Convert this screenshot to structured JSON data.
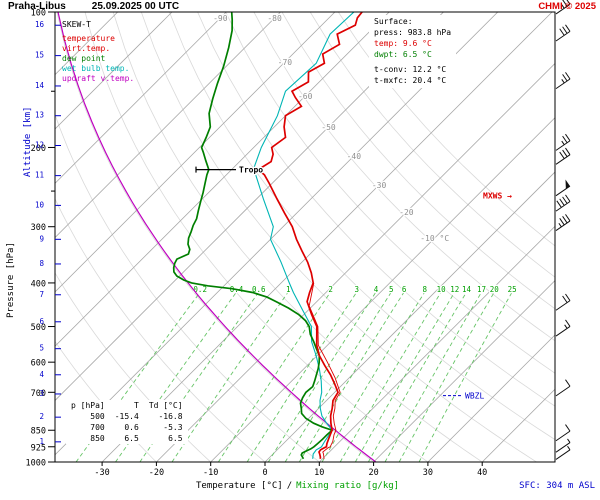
{
  "colors": {
    "red": "#dd0000",
    "blue": "#0000cc",
    "green": "#00a000"
  },
  "header": {
    "station": "Praha-Libus",
    "datetime": "25.09.2025 00 UTC",
    "copyright": "CHMI © 2025"
  },
  "legend": {
    "title": "SKEW-T",
    "items": [
      {
        "label": "temperature",
        "color": "#dd0000"
      },
      {
        "label": "virt.temp.",
        "color": "#dd0000"
      },
      {
        "label": "dew point",
        "color": "#007f00"
      },
      {
        "label": "wet bulb temp.",
        "color": "#00b5b5"
      },
      {
        "label": "updraft v.temp.",
        "color": "#c000c0"
      }
    ]
  },
  "surface_box": {
    "title": "Surface:",
    "lines": [
      {
        "text": "press: 983.8 hPa",
        "color": "#000000"
      },
      {
        "text": "temp: 9.6 °C",
        "color": "#dd0000"
      },
      {
        "text": "dwpt: 6.5 °C",
        "color": "#007f00"
      },
      {
        "text": "t-conv: 12.2 °C",
        "color": "#000000"
      },
      {
        "text": "t-mxfc: 20.4 °C",
        "color": "#000000"
      }
    ]
  },
  "readout_table": {
    "headers": [
      "p [hPa]",
      "T",
      "Td [°C]"
    ],
    "rows": [
      [
        "500",
        "-15.4",
        "-16.8"
      ],
      [
        "700",
        "0.6",
        "-5.3"
      ],
      [
        "850",
        "6.5",
        "6.5"
      ]
    ]
  },
  "axes": {
    "pressure_label": "Pressure [hPa]",
    "altitude_label": "Altitude [km]",
    "pressure_ticks": [
      100,
      200,
      300,
      400,
      500,
      600,
      700,
      850,
      925,
      1000
    ],
    "pressure_minor_ticks": [
      150,
      250
    ],
    "altitude_ticks": [
      {
        "km": 16,
        "p": 107
      },
      {
        "km": 15,
        "p": 125
      },
      {
        "km": 14,
        "p": 146
      },
      {
        "km": 13,
        "p": 170
      },
      {
        "km": 12,
        "p": 198
      },
      {
        "km": 11,
        "p": 231
      },
      {
        "km": 10,
        "p": 269
      },
      {
        "km": 9,
        "p": 320
      },
      {
        "km": 8,
        "p": 363
      },
      {
        "km": 7,
        "p": 425
      },
      {
        "km": 6,
        "p": 488
      },
      {
        "km": 5,
        "p": 560
      },
      {
        "km": 4,
        "p": 640
      },
      {
        "km": 3,
        "p": 706
      },
      {
        "km": 2,
        "p": 795
      },
      {
        "km": 1,
        "p": 902
      }
    ],
    "temp_ticks": [
      -30,
      -20,
      -10,
      0,
      10,
      20,
      30,
      40
    ]
  },
  "footer": {
    "temp_label": "Temperature [°C]",
    "separator": "/",
    "mixing_label": "Mixing ratio [g/kg]",
    "sfc": "SFC: 304 m ASL"
  },
  "chart_data": {
    "type": "line",
    "diagram": "skew-t-log-p sounding",
    "pressure_axis": {
      "unit": "hPa",
      "range": [
        100,
        1000
      ],
      "scale": "log"
    },
    "temperature_axis": {
      "unit": "°C",
      "ticks": [
        -30,
        -20,
        -10,
        0,
        10,
        20,
        30,
        40
      ],
      "skew": "45deg"
    },
    "isotherms": {
      "start": -110,
      "end": 40,
      "step": 10
    },
    "dry_adiabats_theta_c": [
      -20,
      -10,
      0,
      10,
      20,
      30,
      40,
      50,
      60,
      70,
      80,
      90,
      100,
      110,
      120
    ],
    "mixing_ratio_g_kg": [
      0.2,
      0.4,
      0.6,
      1,
      2,
      3,
      4,
      5,
      6,
      8,
      10,
      12,
      14,
      17,
      20,
      25
    ],
    "isotherm_labels": [
      {
        "label": "-90",
        "t": -90,
        "y": 18
      },
      {
        "label": "-80",
        "t": -80,
        "y": 18
      },
      {
        "label": "-70",
        "t": -70,
        "y": 62
      },
      {
        "label": "-60",
        "t": -60,
        "y": 96
      },
      {
        "label": "-50",
        "t": -50,
        "y": 127
      },
      {
        "label": "-40",
        "t": -40,
        "y": 156
      },
      {
        "label": "-30",
        "t": -30,
        "y": 185
      },
      {
        "label": "-20",
        "t": -20,
        "y": 212
      },
      {
        "label": "-10 °C",
        "t": -10,
        "y": 238
      }
    ],
    "tropopause": {
      "label": "Tropo",
      "p": 224
    },
    "markers": {
      "mxws": {
        "label": "MXWS →",
        "p": 256,
        "color": "#dd0000"
      },
      "wbzl": {
        "label": "WBZL",
        "p": 712,
        "color": "#0000cc"
      }
    },
    "series": [
      {
        "name": "temperature",
        "color": "#dd0000",
        "points": [
          [
            984,
            9.6
          ],
          [
            975,
            9.3
          ],
          [
            960,
            8.6
          ],
          [
            950,
            8.1
          ],
          [
            940,
            8.0
          ],
          [
            930,
            8.3
          ],
          [
            925,
            8.5
          ],
          [
            910,
            8.0
          ],
          [
            890,
            7.5
          ],
          [
            870,
            7.0
          ],
          [
            850,
            6.5
          ],
          [
            820,
            5.0
          ],
          [
            790,
            3.6
          ],
          [
            760,
            2.5
          ],
          [
            730,
            1.2
          ],
          [
            700,
            0.6
          ],
          [
            670,
            -1.6
          ],
          [
            640,
            -4.0
          ],
          [
            610,
            -6.8
          ],
          [
            580,
            -9.6
          ],
          [
            550,
            -12.0
          ],
          [
            520,
            -14.0
          ],
          [
            500,
            -15.4
          ],
          [
            470,
            -18.6
          ],
          [
            440,
            -21.8
          ],
          [
            420,
            -23.0
          ],
          [
            400,
            -24.1
          ],
          [
            380,
            -26.3
          ],
          [
            360,
            -28.9
          ],
          [
            340,
            -32.0
          ],
          [
            320,
            -35.2
          ],
          [
            300,
            -38.3
          ],
          [
            280,
            -42.2
          ],
          [
            260,
            -46.3
          ],
          [
            250,
            -48.4
          ],
          [
            240,
            -50.6
          ],
          [
            230,
            -53.0
          ],
          [
            224,
            -55.1
          ],
          [
            215,
            -54.2
          ],
          [
            207,
            -55.2
          ],
          [
            200,
            -56.7
          ],
          [
            190,
            -56.0
          ],
          [
            180,
            -58.2
          ],
          [
            170,
            -60.0
          ],
          [
            162,
            -58.8
          ],
          [
            155,
            -61.5
          ],
          [
            150,
            -63.3
          ],
          [
            143,
            -62.0
          ],
          [
            136,
            -63.8
          ],
          [
            130,
            -62.5
          ],
          [
            124,
            -64.5
          ],
          [
            118,
            -63.2
          ],
          [
            112,
            -65.5
          ],
          [
            107,
            -63.8
          ],
          [
            103,
            -64.8
          ],
          [
            100,
            -65.0
          ]
        ]
      },
      {
        "name": "virt.temp.",
        "color": "#dd0000",
        "points": [
          [
            984,
            10.3
          ],
          [
            960,
            9.3
          ],
          [
            950,
            8.8
          ],
          [
            930,
            9.0
          ],
          [
            925,
            9.2
          ],
          [
            900,
            8.7
          ],
          [
            870,
            7.7
          ],
          [
            850,
            7.2
          ],
          [
            820,
            5.6
          ],
          [
            790,
            4.1
          ],
          [
            760,
            3.0
          ],
          [
            730,
            1.6
          ],
          [
            700,
            1.0
          ],
          [
            650,
            -2.6
          ],
          [
            600,
            -6.9
          ],
          [
            550,
            -11.7
          ],
          [
            500,
            -15.2
          ],
          [
            450,
            -20.6
          ],
          [
            400,
            -24.0
          ]
        ]
      },
      {
        "name": "dew point",
        "color": "#007f00",
        "points": [
          [
            984,
            6.5
          ],
          [
            975,
            6.0
          ],
          [
            965,
            5.4
          ],
          [
            955,
            5.2
          ],
          [
            945,
            5.6
          ],
          [
            935,
            6.0
          ],
          [
            925,
            6.2
          ],
          [
            910,
            6.3
          ],
          [
            890,
            6.4
          ],
          [
            870,
            6.4
          ],
          [
            850,
            6.5
          ],
          [
            835,
            4.0
          ],
          [
            820,
            1.8
          ],
          [
            800,
            -0.5
          ],
          [
            780,
            -2.2
          ],
          [
            760,
            -3.2
          ],
          [
            740,
            -4.3
          ],
          [
            720,
            -4.9
          ],
          [
            700,
            -5.3
          ],
          [
            680,
            -5.1
          ],
          [
            660,
            -5.8
          ],
          [
            640,
            -6.6
          ],
          [
            620,
            -7.4
          ],
          [
            600,
            -8.4
          ],
          [
            580,
            -9.6
          ],
          [
            560,
            -11.4
          ],
          [
            540,
            -13.2
          ],
          [
            520,
            -15.2
          ],
          [
            500,
            -16.8
          ],
          [
            485,
            -18.6
          ],
          [
            470,
            -21.0
          ],
          [
            455,
            -24.0
          ],
          [
            440,
            -27.5
          ],
          [
            430,
            -30.0
          ],
          [
            420,
            -33.5
          ],
          [
            412,
            -38.0
          ],
          [
            406,
            -43.0
          ],
          [
            400,
            -46.5
          ],
          [
            394,
            -48.5
          ],
          [
            386,
            -50.5
          ],
          [
            378,
            -51.8
          ],
          [
            370,
            -52.6
          ],
          [
            362,
            -53.2
          ],
          [
            354,
            -53.6
          ],
          [
            345,
            -52.4
          ],
          [
            337,
            -53.0
          ],
          [
            328,
            -54.3
          ],
          [
            318,
            -55.3
          ],
          [
            308,
            -56.0
          ],
          [
            298,
            -56.8
          ],
          [
            288,
            -57.4
          ],
          [
            276,
            -58.6
          ],
          [
            264,
            -59.8
          ],
          [
            252,
            -61.0
          ],
          [
            240,
            -62.4
          ],
          [
            230,
            -63.6
          ],
          [
            224,
            -64.2
          ],
          [
            214,
            -66.4
          ],
          [
            205,
            -68.4
          ],
          [
            200,
            -69.6
          ],
          [
            190,
            -70.6
          ],
          [
            180,
            -71.8
          ],
          [
            168,
            -74.5
          ],
          [
            156,
            -76.5
          ],
          [
            144,
            -78.5
          ],
          [
            132,
            -80.5
          ],
          [
            120,
            -83.0
          ],
          [
            110,
            -85.5
          ],
          [
            104,
            -87.5
          ],
          [
            100,
            -89.0
          ]
        ]
      },
      {
        "name": "wet bulb temp.",
        "color": "#00b5b5",
        "points": [
          [
            984,
            8.2
          ],
          [
            960,
            7.4
          ],
          [
            940,
            7.2
          ],
          [
            925,
            7.6
          ],
          [
            900,
            7.2
          ],
          [
            870,
            6.8
          ],
          [
            850,
            6.5
          ],
          [
            820,
            4.2
          ],
          [
            790,
            2.0
          ],
          [
            760,
            0.3
          ],
          [
            730,
            -1.2
          ],
          [
            700,
            -2.4
          ],
          [
            660,
            -4.6
          ],
          [
            620,
            -7.2
          ],
          [
            580,
            -10.2
          ],
          [
            540,
            -13.6
          ],
          [
            500,
            -16.4
          ],
          [
            460,
            -21.0
          ],
          [
            420,
            -26.0
          ],
          [
            400,
            -28.5
          ],
          [
            360,
            -33.8
          ],
          [
            320,
            -40.0
          ],
          [
            300,
            -41.8
          ],
          [
            260,
            -48.8
          ],
          [
            230,
            -54.6
          ],
          [
            224,
            -56.0
          ],
          [
            200,
            -58.6
          ],
          [
            170,
            -61.5
          ],
          [
            150,
            -64.5
          ],
          [
            130,
            -64.0
          ],
          [
            112,
            -66.8
          ],
          [
            100,
            -66.5
          ]
        ]
      },
      {
        "name": "updraft v.temp.",
        "color": "#c000c0",
        "theta_c": 20.4,
        "points": []
      }
    ],
    "wind_barbs": [
      {
        "p": 101,
        "kt": 25
      },
      {
        "p": 116,
        "kt": 30
      },
      {
        "p": 148,
        "kt": 25
      },
      {
        "p": 203,
        "kt": 25
      },
      {
        "p": 218,
        "kt": 30
      },
      {
        "p": 256,
        "kt": 50
      },
      {
        "p": 277,
        "kt": 40
      },
      {
        "p": 306,
        "kt": 35
      },
      {
        "p": 460,
        "kt": 20
      },
      {
        "p": 525,
        "kt": 15
      },
      {
        "p": 713,
        "kt": 10
      },
      {
        "p": 897,
        "kt": 10
      },
      {
        "p": 951,
        "kt": 5
      },
      {
        "p": 987,
        "kt": 5
      }
    ]
  }
}
